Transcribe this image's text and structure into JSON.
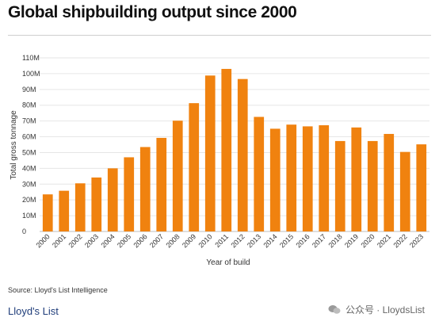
{
  "header": {
    "title": "Global shipbuilding output since 2000"
  },
  "footer": {
    "source": "Source: Lloyd's List Intelligence",
    "logo_text": "Lloyd's List",
    "watermark": "公众号 · LloydsList"
  },
  "colors": {
    "bar": "#f0820f",
    "grid": "#e6e6e6",
    "text": "#333333"
  },
  "chart_data": {
    "type": "bar",
    "title": "Global shipbuilding output since 2000",
    "xlabel": "Year of build",
    "ylabel": "Total gross tonnage",
    "ylim": [
      0,
      110000000
    ],
    "yticks": [
      0,
      10000000,
      20000000,
      30000000,
      40000000,
      50000000,
      60000000,
      70000000,
      80000000,
      90000000,
      100000000,
      110000000
    ],
    "ytick_labels": [
      "0",
      "10M",
      "20M",
      "30M",
      "40M",
      "50M",
      "60M",
      "70M",
      "80M",
      "90M",
      "100M",
      "110M"
    ],
    "categories": [
      "2000",
      "2001",
      "2002",
      "2003",
      "2004",
      "2005",
      "2006",
      "2007",
      "2008",
      "2009",
      "2010",
      "2011",
      "2012",
      "2013",
      "2014",
      "2015",
      "2016",
      "2017",
      "2018",
      "2019",
      "2020",
      "2021",
      "2022",
      "2023"
    ],
    "values": [
      23500000,
      25800000,
      30500000,
      34200000,
      40000000,
      47000000,
      53500000,
      59300000,
      70200000,
      81300000,
      98800000,
      103000000,
      96600000,
      72600000,
      65100000,
      67700000,
      66600000,
      67300000,
      57300000,
      65900000,
      57300000,
      61800000,
      50400000,
      55200000
    ],
    "grid": "horizontal",
    "legend": "none"
  }
}
